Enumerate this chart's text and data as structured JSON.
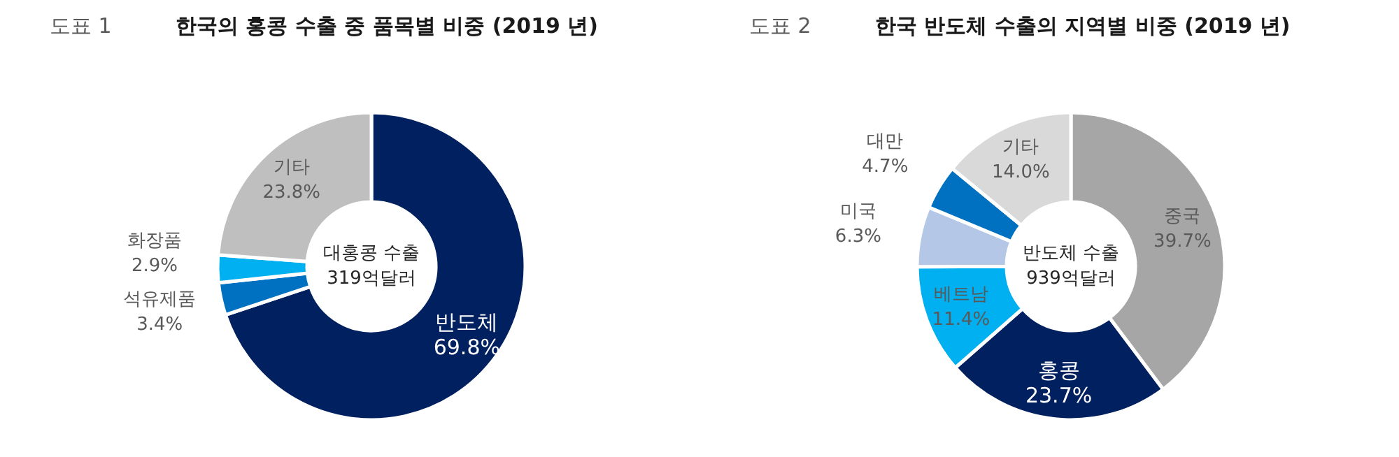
{
  "chart_data": [
    {
      "type": "donut",
      "subtitle": "도표 1",
      "title": "한국의 홍콩 수출 중 품목별 비중 (2019 년)",
      "categories": [
        "반도체",
        "석유제품",
        "화장품",
        "기타"
      ],
      "values": [
        69.8,
        3.4,
        2.9,
        23.8
      ],
      "value_labels": [
        "69.8%",
        "3.4%",
        "2.9%",
        "23.8%"
      ],
      "colors": [
        "#002060",
        "#0070c0",
        "#00b0f0",
        "#bfbfbf"
      ],
      "annotations": [
        "대홍콩 수출",
        "319억달러"
      ]
    },
    {
      "type": "donut",
      "subtitle": "도표 2",
      "title": "한국 반도체 수출의 지역별 비중 (2019 년)",
      "categories": [
        "중국",
        "홍콩",
        "베트남",
        "미국",
        "대만",
        "기타"
      ],
      "values": [
        39.7,
        23.7,
        11.4,
        6.3,
        4.7,
        14.0
      ],
      "value_labels": [
        "39.7%",
        "23.7%",
        "11.4%",
        "6.3%",
        "4.7%",
        "14.0%"
      ],
      "colors": [
        "#a6a6a6",
        "#002060",
        "#00b0f0",
        "#b4c7e7",
        "#0070c0",
        "#d9d9d9"
      ],
      "annotations": [
        "반도체 수출",
        "939억달러"
      ]
    }
  ]
}
